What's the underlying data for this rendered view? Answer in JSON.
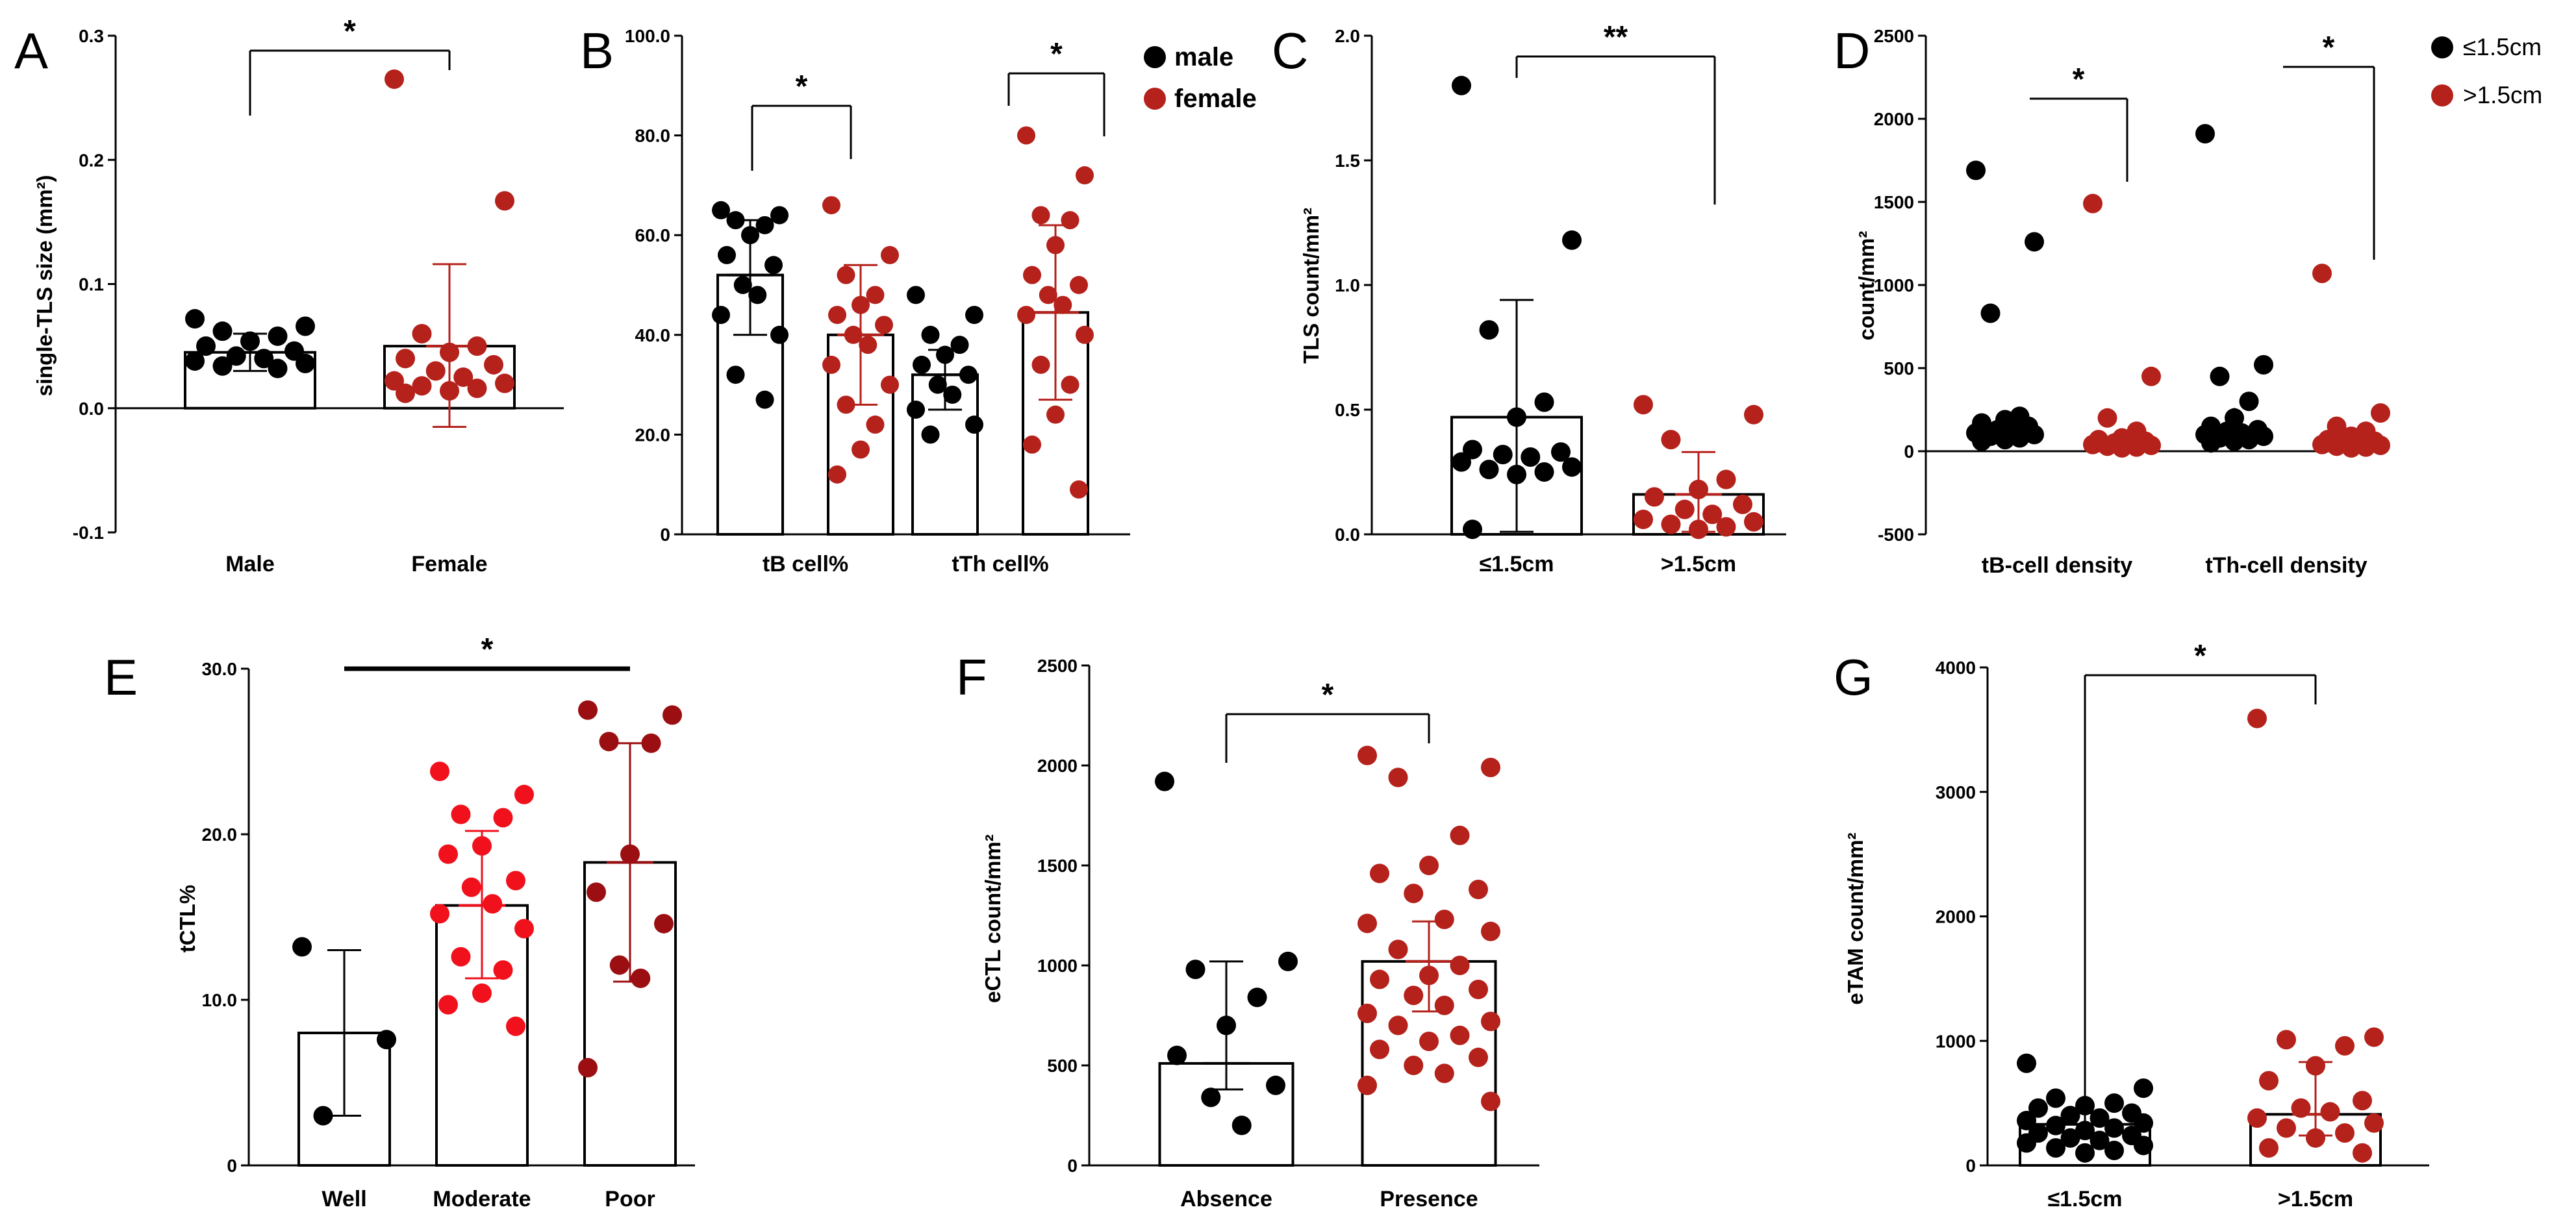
{
  "colors": {
    "male": "#000000",
    "female": "#b5211b",
    "moderate": "#f0111c",
    "poor": "#9b0f12"
  },
  "chart_data": [
    {
      "panel": "A",
      "type": "bar",
      "ylabel": "single-TLS size (mm²)",
      "ylim": [
        -0.1,
        0.3
      ],
      "yticks": [
        "-0.1",
        "0.0",
        "0.1",
        "0.2",
        "0.3"
      ],
      "categories": [
        "Male",
        "Female"
      ],
      "means": [
        0.045,
        0.05
      ],
      "sd": [
        [
          0.03,
          0.06
        ],
        [
          -0.015,
          0.116
        ]
      ],
      "points": [
        [
          0.072,
          0.066,
          0.062,
          0.058,
          0.054,
          0.05,
          0.046,
          0.042,
          0.04,
          0.038,
          0.036,
          0.034,
          0.032
        ],
        [
          0.265,
          0.167,
          0.06,
          0.05,
          0.045,
          0.04,
          0.035,
          0.03,
          0.025,
          0.022,
          0.02,
          0.018,
          0.016,
          0.014,
          0.012
        ]
      ],
      "significance": "*"
    },
    {
      "panel": "B",
      "type": "bar",
      "ylim": [
        0,
        100
      ],
      "yticks": [
        "0",
        "20.0",
        "40.0",
        "60.0",
        "80.0",
        "100.0"
      ],
      "categories": [
        "tB cell%",
        "tTh cell%"
      ],
      "series": [
        {
          "name": "male",
          "means": [
            52,
            32
          ],
          "sd": [
            [
              40,
              63
            ],
            [
              25,
              37
            ]
          ],
          "points": [
            [
              65,
              64,
              63,
              62,
              60,
              56,
              54,
              50,
              48,
              44,
              40,
              32,
              27
            ],
            [
              48,
              44,
              40,
              38,
              36,
              34,
              32,
              30,
              28,
              25,
              22,
              20
            ]
          ]
        },
        {
          "name": "female",
          "means": [
            40,
            44.5
          ],
          "sd": [
            [
              26,
              54
            ],
            [
              27,
              62
            ]
          ],
          "points": [
            [
              66,
              56,
              52,
              48,
              46,
              44,
              42,
              40,
              38,
              34,
              30,
              26,
              22,
              17,
              12
            ],
            [
              80,
              72,
              64,
              63,
              58,
              52,
              50,
              48,
              46,
              44,
              40,
              34,
              30,
              24,
              18,
              9
            ]
          ]
        }
      ],
      "significance": [
        "*",
        "*"
      ],
      "legend": [
        "male",
        "female"
      ]
    },
    {
      "panel": "C",
      "type": "bar",
      "ylabel": "TLS count/mm²",
      "ylim": [
        0,
        2.0
      ],
      "yticks": [
        "0.0",
        "0.5",
        "1.0",
        "1.5",
        "2.0"
      ],
      "categories": [
        "≤1.5cm",
        ">1.5cm"
      ],
      "means": [
        0.47,
        0.16
      ],
      "sd": [
        [
          0.01,
          0.94
        ],
        [
          0.01,
          0.33
        ]
      ],
      "points": [
        [
          1.8,
          1.18,
          0.82,
          0.53,
          0.47,
          0.34,
          0.33,
          0.32,
          0.31,
          0.29,
          0.27,
          0.26,
          0.25,
          0.24,
          0.02
        ],
        [
          0.52,
          0.48,
          0.38,
          0.22,
          0.18,
          0.15,
          0.12,
          0.1,
          0.08,
          0.06,
          0.05,
          0.04,
          0.03,
          0.02
        ]
      ],
      "significance": "**"
    },
    {
      "panel": "D",
      "type": "scatter",
      "ylabel": "count/mm²",
      "ylim": [
        -500,
        2500
      ],
      "yticks": [
        "-500",
        "0",
        "500",
        "1000",
        "1500",
        "2000",
        "2500"
      ],
      "categories": [
        "tB-cell density",
        "tTh-cell density"
      ],
      "series": [
        {
          "name": "≤1.5cm",
          "means": [
            120,
            120
          ],
          "sd": [
            [
              40,
              210
            ],
            [
              40,
              260
            ]
          ],
          "points": [
            [
              1690,
              1260,
              830,
              210,
              190,
              170,
              150,
              130,
              120,
              110,
              100,
              90,
              80,
              70,
              60
            ],
            [
              1910,
              520,
              450,
              300,
              200,
              150,
              130,
              120,
              110,
              100,
              90,
              80,
              70,
              60,
              50
            ]
          ]
        },
        {
          "name": ">1.5cm",
          "means": [
            60,
            60
          ],
          "sd": [
            [
              20,
              80
            ],
            [
              20,
              90
            ]
          ],
          "points": [
            [
              1490,
              450,
              200,
              120,
              80,
              70,
              60,
              50,
              45,
              40,
              35,
              30,
              25,
              20
            ],
            [
              1070,
              230,
              150,
              120,
              90,
              70,
              60,
              50,
              45,
              40,
              35,
              30,
              25,
              20
            ]
          ]
        }
      ],
      "significance": [
        "*",
        "*"
      ],
      "legend": [
        "≤1.5cm",
        ">1.5cm"
      ]
    },
    {
      "panel": "E",
      "type": "bar",
      "ylabel": "tCTL%",
      "ylim": [
        0,
        30
      ],
      "yticks": [
        "0",
        "10.0",
        "20.0",
        "30.0"
      ],
      "categories": [
        "Well",
        "Moderate",
        "Poor"
      ],
      "means": [
        8,
        15.7,
        18.3
      ],
      "sd": [
        [
          3,
          13
        ],
        [
          11.3,
          20.2
        ],
        [
          11.1,
          25.5
        ]
      ],
      "points": [
        [
          13.2,
          7.6,
          3.0
        ],
        [
          23.8,
          22.4,
          21.2,
          21.0,
          19.3,
          18.8,
          17.2,
          16.8,
          15.8,
          15.2,
          14.3,
          12.6,
          11.8,
          10.4,
          9.7,
          8.4
        ],
        [
          27.5,
          27.2,
          25.6,
          25.5,
          18.8,
          16.5,
          14.6,
          12.1,
          11.3,
          5.9
        ]
      ],
      "significance": "*"
    },
    {
      "panel": "F",
      "type": "bar",
      "ylabel": "eCTL count/mm²",
      "ylim": [
        0,
        2500
      ],
      "yticks": [
        "0",
        "500",
        "1000",
        "1500",
        "2000",
        "2500"
      ],
      "categories": [
        "Absence",
        "Presence"
      ],
      "means": [
        510,
        1020
      ],
      "sd": [
        [
          380,
          1020
        ],
        [
          770,
          1220
        ]
      ],
      "points": [
        [
          1920,
          1020,
          980,
          840,
          700,
          550,
          400,
          340,
          200
        ],
        [
          2050,
          1990,
          1940,
          1650,
          1500,
          1460,
          1380,
          1360,
          1230,
          1210,
          1170,
          1080,
          1000,
          950,
          930,
          880,
          850,
          800,
          760,
          720,
          700,
          650,
          620,
          580,
          540,
          500,
          460,
          400,
          320
        ]
      ],
      "significance": "*"
    },
    {
      "panel": "G",
      "type": "bar",
      "ylabel": "eTAM count/mm²",
      "ylim": [
        0,
        4000
      ],
      "yticks": [
        "0",
        "1000",
        "2000",
        "3000",
        "4000"
      ],
      "categories": [
        "≤1.5cm",
        ">1.5cm"
      ],
      "means": [
        330,
        410
      ],
      "sd": [
        [
          220,
          420
        ],
        [
          240,
          830
        ]
      ],
      "points": [
        [
          820,
          620,
          540,
          500,
          480,
          460,
          420,
          400,
          380,
          360,
          340,
          320,
          300,
          280,
          260,
          240,
          220,
          200,
          180,
          160,
          140,
          120,
          100
        ],
        [
          3590,
          1030,
          1010,
          960,
          800,
          680,
          520,
          460,
          430,
          380,
          340,
          300,
          260,
          220,
          140,
          100
        ]
      ],
      "significance": "*"
    }
  ]
}
